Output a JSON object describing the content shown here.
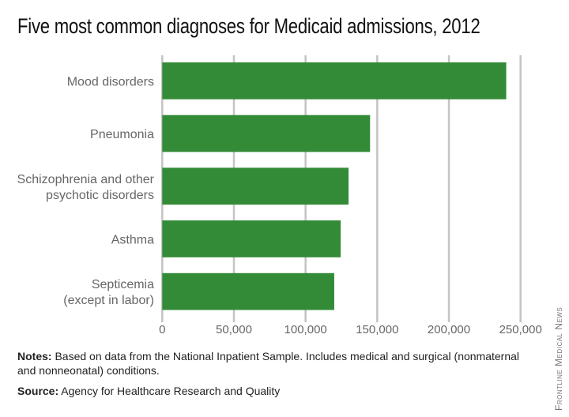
{
  "chart_data": {
    "type": "bar",
    "orientation": "horizontal",
    "title": "Five most common diagnoses for Medicaid admissions, 2012",
    "categories": [
      [
        "Mood disorders"
      ],
      [
        "Pneumonia"
      ],
      [
        "Schizophrenia and other",
        "psychotic disorders"
      ],
      [
        "Asthma"
      ],
      [
        "Septicemia",
        "(except in labor)"
      ]
    ],
    "values": [
      240000,
      145000,
      130000,
      124500,
      120000
    ],
    "xlim": [
      0,
      250000
    ],
    "xticks": [
      0,
      50000,
      100000,
      150000,
      200000,
      250000
    ],
    "xtick_labels": [
      "0",
      "50,000",
      "100,000",
      "150,000",
      "200,000",
      "250,000"
    ],
    "grid": true,
    "bar_color": "#348b37",
    "grid_color": "#c4c4c4"
  },
  "notes": {
    "label": "Notes:",
    "text": " Based on data from the National Inpatient Sample. Includes medical and surgical (nonmaternal and nonneonatal) conditions."
  },
  "source": {
    "label": "Source:",
    "text": " Agency for Healthcare Research and Quality"
  },
  "credit": "Frontline Medical News"
}
